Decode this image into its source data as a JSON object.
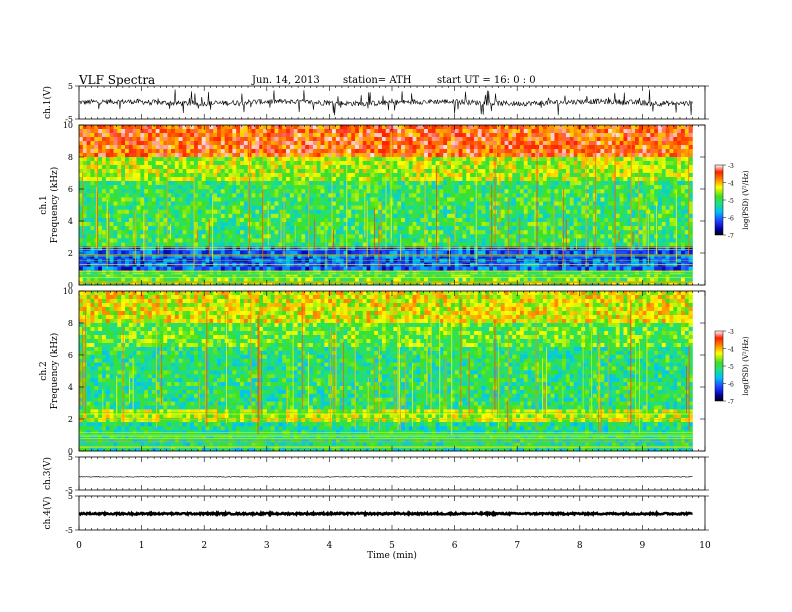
{
  "header": {
    "title": "VLF  Spectra",
    "date": "Jun. 14, 2013",
    "station": "station= ATH",
    "start": "start  UT  =    16: 0   : 0"
  },
  "chart_data": [
    {
      "type": "line",
      "panel": "ch1-waveform",
      "ylabel": "ch.1(V)",
      "yticks": [
        "5",
        "-5"
      ],
      "ylim": [
        -5,
        5
      ],
      "xlim": [
        0,
        10
      ],
      "data_end": 9.8,
      "trace_color": "#000000",
      "description_of_values": "noisy waveform near 0 V with spikes up to about +/-4 V"
    },
    {
      "type": "heatmap",
      "panel": "ch1-spectrogram",
      "ylabel": "Frequency  (kHz)",
      "channel_label": "ch.1",
      "ylim": [
        0,
        10
      ],
      "yticks": [
        "0",
        "2",
        "4",
        "6",
        "8",
        "10"
      ],
      "xlim": [
        0,
        10
      ],
      "data_end": 9.8,
      "colorbar": {
        "label": "log(PSD) (V²/Hz)",
        "ticks": [
          "-3",
          "-4",
          "-5",
          "-6",
          "-7"
        ],
        "range": [
          -7,
          -3
        ]
      },
      "bands": [
        {
          "f_from": 8.0,
          "f_to": 10.0,
          "level": -3.6
        },
        {
          "f_from": 6.5,
          "f_to": 8.0,
          "level": -4.5
        },
        {
          "f_from": 2.4,
          "f_to": 6.5,
          "level": -5.0
        },
        {
          "f_from": 0.9,
          "f_to": 2.4,
          "level": -6.1
        },
        {
          "f_from": 0.0,
          "f_to": 0.9,
          "level": -4.8
        }
      ]
    },
    {
      "type": "heatmap",
      "panel": "ch2-spectrogram",
      "ylabel": "Frequency  (kHz)",
      "channel_label": "ch.2",
      "ylim": [
        0,
        10
      ],
      "yticks": [
        "0",
        "2",
        "4",
        "6",
        "8",
        "10"
      ],
      "xlim": [
        0,
        10
      ],
      "data_end": 9.8,
      "colorbar": {
        "label": "log(PSD) (V²/Hz)",
        "ticks": [
          "-3",
          "-4",
          "-5",
          "-6",
          "-7"
        ],
        "range": [
          -7,
          -3
        ]
      },
      "bands": [
        {
          "f_from": 8.0,
          "f_to": 10.0,
          "level": -4.3
        },
        {
          "f_from": 6.5,
          "f_to": 8.0,
          "level": -4.8
        },
        {
          "f_from": 2.6,
          "f_to": 6.5,
          "level": -5.1
        },
        {
          "f_from": 1.8,
          "f_to": 2.6,
          "level": -4.5
        },
        {
          "f_from": 0.0,
          "f_to": 1.8,
          "level": -5.2
        }
      ]
    },
    {
      "type": "line",
      "panel": "ch3-waveform",
      "ylabel": "ch.3(V)",
      "yticks": [
        "5",
        "-5"
      ],
      "ylim": [
        -5,
        5
      ],
      "xlim": [
        0,
        10
      ],
      "data_end": 9.8,
      "trace_color": "#000000",
      "description_of_values": "flat trace slightly below 0 V"
    },
    {
      "type": "line",
      "panel": "ch4-waveform",
      "ylabel": "ch.4(V)",
      "yticks": [
        "5",
        "-5"
      ],
      "ylim": [
        -5,
        5
      ],
      "xlim": [
        0,
        10
      ],
      "data_end": 9.8,
      "trace_color": "#000000",
      "description_of_values": "thick flat trace near 0 V"
    }
  ],
  "xaxis": {
    "label": "Time  (min)",
    "ticks": [
      "0",
      "1",
      "2",
      "3",
      "4",
      "5",
      "6",
      "7",
      "8",
      "9",
      "10"
    ],
    "xlim": [
      0,
      10
    ]
  }
}
